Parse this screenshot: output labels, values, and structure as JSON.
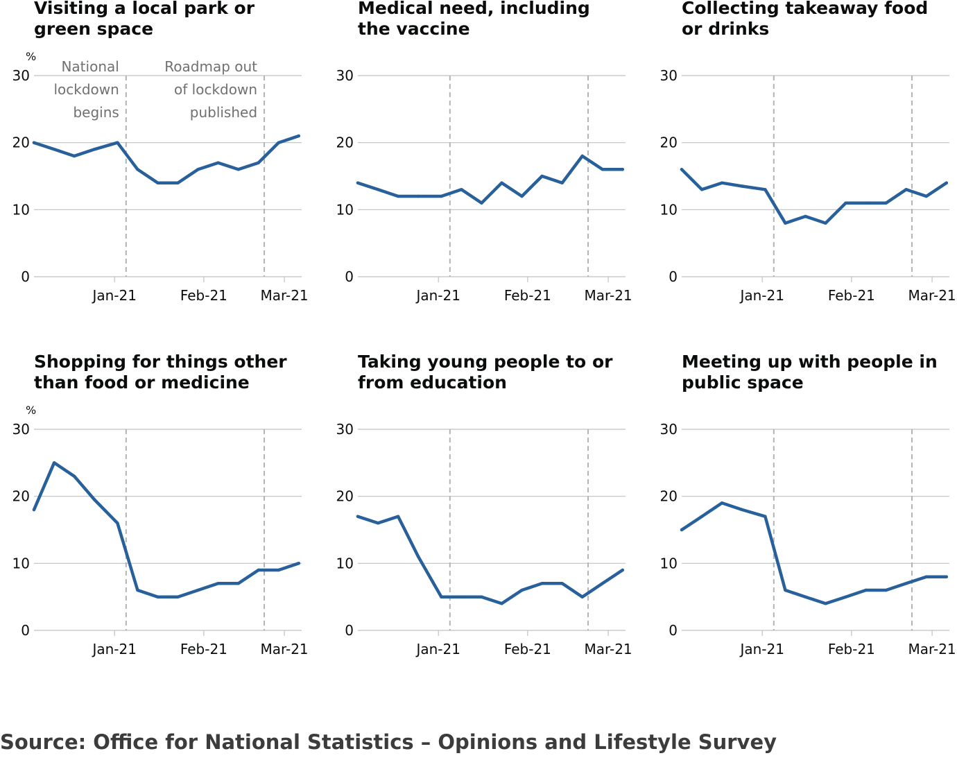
{
  "colors": {
    "line": "#27609a"
  },
  "source": "Source: Office for National Statistics – Opinions and Lifestyle Survey",
  "chart_data": [
    {
      "type": "line",
      "title_lines": [
        "Visiting a local park or",
        "green space"
      ],
      "ylabel": "%",
      "ylim": [
        0,
        30
      ],
      "yticks": [
        0,
        10,
        20,
        30
      ],
      "xlim": [
        "2020-12-04",
        "2021-03-07"
      ],
      "xticks": [
        {
          "date": "2021-01-01",
          "label": "Jan-21"
        },
        {
          "date": "2021-02-01",
          "label": "Feb-21"
        },
        {
          "date": "2021-03-01",
          "label": "Mar-21"
        }
      ],
      "markers": [
        {
          "date": "2021-01-05",
          "lines": [
            "National",
            "lockdown",
            "begins"
          ]
        },
        {
          "date": "2021-02-22",
          "lines": [
            "Roadmap out",
            "of lockdown",
            "published"
          ]
        }
      ],
      "grid": true,
      "x": [
        "2020-12-04",
        "2020-12-11",
        "2020-12-18",
        "2020-12-25",
        "2021-01-02",
        "2021-01-09",
        "2021-01-16",
        "2021-01-23",
        "2021-01-30",
        "2021-02-06",
        "2021-02-13",
        "2021-02-20",
        "2021-02-27",
        "2021-03-06"
      ],
      "values": [
        20,
        19,
        18,
        19,
        20,
        16,
        14,
        14,
        16,
        17,
        16,
        17,
        20,
        21
      ]
    },
    {
      "type": "line",
      "title_lines": [
        "Medical need, including",
        "the vaccine"
      ],
      "ylim": [
        0,
        30
      ],
      "yticks": [
        0,
        10,
        20,
        30
      ],
      "xlim": [
        "2020-12-04",
        "2021-03-07"
      ],
      "xticks": [
        {
          "date": "2021-01-01",
          "label": "Jan-21"
        },
        {
          "date": "2021-02-01",
          "label": "Feb-21"
        },
        {
          "date": "2021-03-01",
          "label": "Mar-21"
        }
      ],
      "markers": [
        {
          "date": "2021-01-05"
        },
        {
          "date": "2021-02-22"
        }
      ],
      "grid": true,
      "x": [
        "2020-12-04",
        "2020-12-11",
        "2020-12-18",
        "2020-12-25",
        "2021-01-02",
        "2021-01-09",
        "2021-01-16",
        "2021-01-23",
        "2021-01-30",
        "2021-02-06",
        "2021-02-13",
        "2021-02-20",
        "2021-02-27",
        "2021-03-06"
      ],
      "values": [
        14,
        13,
        12,
        12,
        12,
        13,
        11,
        14,
        12,
        15,
        14,
        18,
        16,
        16
      ]
    },
    {
      "type": "line",
      "title_lines": [
        "Collecting takeaway food",
        "or drinks"
      ],
      "ylim": [
        0,
        30
      ],
      "yticks": [
        0,
        10,
        20,
        30
      ],
      "xlim": [
        "2020-12-04",
        "2021-03-07"
      ],
      "xticks": [
        {
          "date": "2021-01-01",
          "label": "Jan-21"
        },
        {
          "date": "2021-02-01",
          "label": "Feb-21"
        },
        {
          "date": "2021-03-01",
          "label": "Mar-21"
        }
      ],
      "markers": [
        {
          "date": "2021-01-05"
        },
        {
          "date": "2021-02-22"
        }
      ],
      "grid": true,
      "x": [
        "2020-12-04",
        "2020-12-11",
        "2020-12-18",
        "2020-12-25",
        "2021-01-02",
        "2021-01-09",
        "2021-01-16",
        "2021-01-23",
        "2021-01-30",
        "2021-02-06",
        "2021-02-13",
        "2021-02-20",
        "2021-02-27",
        "2021-03-06"
      ],
      "values": [
        16,
        13,
        14,
        13.5,
        13,
        8,
        9,
        8,
        11,
        11,
        11,
        13,
        12,
        14
      ]
    },
    {
      "type": "line",
      "title_lines": [
        "Shopping for things other",
        "than food or medicine"
      ],
      "ylabel": "%",
      "ylim": [
        0,
        30
      ],
      "yticks": [
        0,
        10,
        20,
        30
      ],
      "xlim": [
        "2020-12-04",
        "2021-03-07"
      ],
      "xticks": [
        {
          "date": "2021-01-01",
          "label": "Jan-21"
        },
        {
          "date": "2021-02-01",
          "label": "Feb-21"
        },
        {
          "date": "2021-03-01",
          "label": "Mar-21"
        }
      ],
      "markers": [
        {
          "date": "2021-01-05"
        },
        {
          "date": "2021-02-22"
        }
      ],
      "grid": true,
      "x": [
        "2020-12-04",
        "2020-12-11",
        "2020-12-18",
        "2020-12-25",
        "2021-01-02",
        "2021-01-09",
        "2021-01-16",
        "2021-01-23",
        "2021-01-30",
        "2021-02-06",
        "2021-02-13",
        "2021-02-20",
        "2021-02-27",
        "2021-03-06"
      ],
      "values": [
        18,
        25,
        23,
        19.5,
        16,
        6,
        5,
        5,
        6,
        7,
        7,
        9,
        9,
        10
      ]
    },
    {
      "type": "line",
      "title_lines": [
        "Taking young people to or",
        "from education"
      ],
      "ylim": [
        0,
        30
      ],
      "yticks": [
        0,
        10,
        20,
        30
      ],
      "xlim": [
        "2020-12-04",
        "2021-03-07"
      ],
      "xticks": [
        {
          "date": "2021-01-01",
          "label": "Jan-21"
        },
        {
          "date": "2021-02-01",
          "label": "Feb-21"
        },
        {
          "date": "2021-03-01",
          "label": "Mar-21"
        }
      ],
      "markers": [
        {
          "date": "2021-01-05"
        },
        {
          "date": "2021-02-22"
        }
      ],
      "grid": true,
      "x": [
        "2020-12-04",
        "2020-12-11",
        "2020-12-18",
        "2020-12-25",
        "2021-01-02",
        "2021-01-09",
        "2021-01-16",
        "2021-01-23",
        "2021-01-30",
        "2021-02-06",
        "2021-02-13",
        "2021-02-20",
        "2021-02-27",
        "2021-03-06"
      ],
      "values": [
        17,
        16,
        17,
        11,
        5,
        5,
        5,
        4,
        6,
        7,
        7,
        5,
        7,
        9
      ]
    },
    {
      "type": "line",
      "title_lines": [
        "Meeting up with people in",
        "public space"
      ],
      "ylim": [
        0,
        30
      ],
      "yticks": [
        0,
        10,
        20,
        30
      ],
      "xlim": [
        "2020-12-04",
        "2021-03-07"
      ],
      "xticks": [
        {
          "date": "2021-01-01",
          "label": "Jan-21"
        },
        {
          "date": "2021-02-01",
          "label": "Feb-21"
        },
        {
          "date": "2021-03-01",
          "label": "Mar-21"
        }
      ],
      "markers": [
        {
          "date": "2021-01-05"
        },
        {
          "date": "2021-02-22"
        }
      ],
      "grid": true,
      "x": [
        "2020-12-04",
        "2020-12-11",
        "2020-12-18",
        "2020-12-25",
        "2021-01-02",
        "2021-01-09",
        "2021-01-16",
        "2021-01-23",
        "2021-01-30",
        "2021-02-06",
        "2021-02-13",
        "2021-02-20",
        "2021-02-27",
        "2021-03-06"
      ],
      "values": [
        15,
        17,
        19,
        18,
        17,
        6,
        5,
        4,
        5,
        6,
        6,
        7,
        8,
        8
      ]
    }
  ]
}
